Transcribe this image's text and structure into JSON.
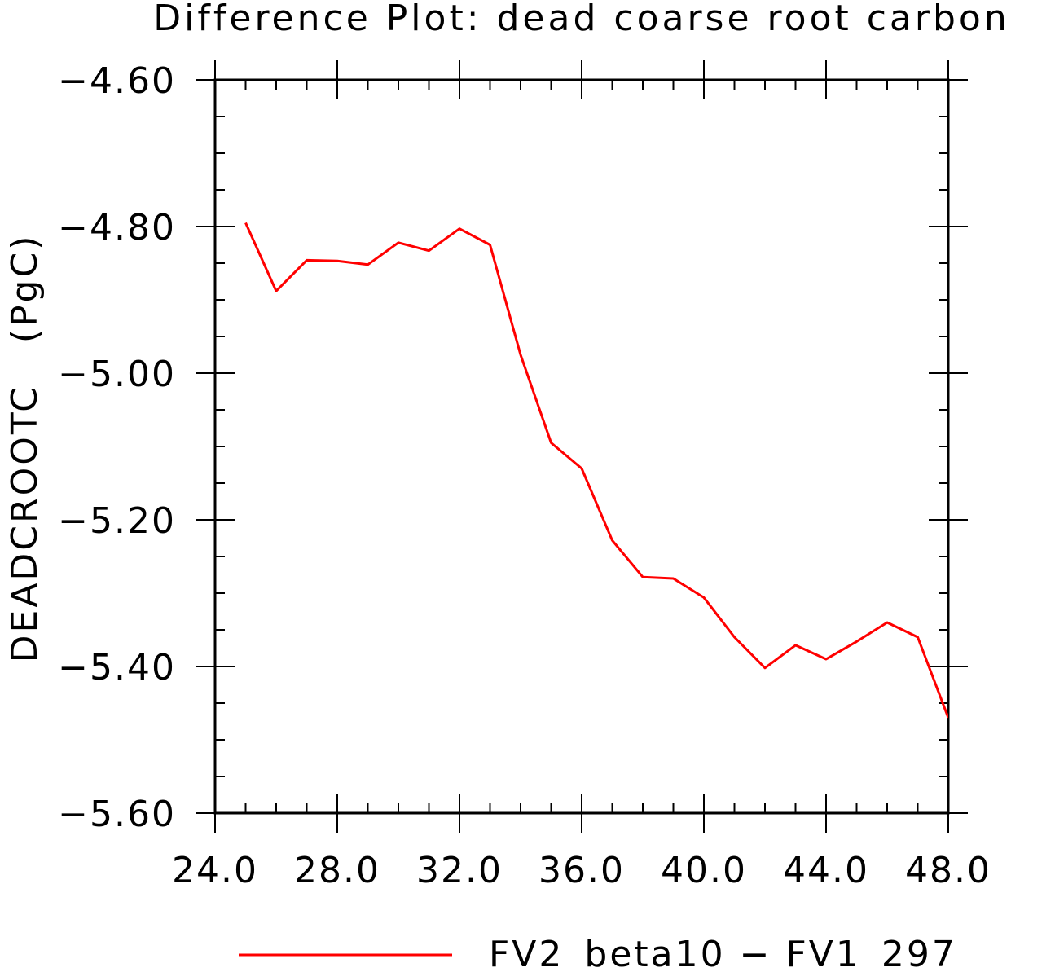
{
  "chart_data": {
    "type": "line",
    "title": "Difference Plot: dead coarse root carbon",
    "xlabel": "",
    "ylabel": "DEADCROOTC   (PgC)",
    "xlim": [
      24,
      48
    ],
    "ylim": [
      -5.6,
      -4.6
    ],
    "x_ticks": [
      "24.0",
      "28.0",
      "32.0",
      "36.0",
      "40.0",
      "44.0",
      "48.0"
    ],
    "x_tick_values": [
      24,
      28,
      32,
      36,
      40,
      44,
      48
    ],
    "y_ticks": [
      "-4.60",
      "-4.80",
      "-5.00",
      "-5.20",
      "-5.40",
      "-5.60"
    ],
    "y_tick_values": [
      -4.6,
      -4.8,
      -5.0,
      -5.2,
      -5.4,
      -5.6
    ],
    "x_minor_step": 1,
    "y_minor_step": 0.05,
    "grid": false,
    "legend_position": "bottom-center",
    "series": [
      {
        "name": "FV2_beta10 - FV1_297",
        "color": "#ff0000",
        "x": [
          25,
          26,
          27,
          28,
          29,
          30,
          31,
          32,
          33,
          34,
          35,
          36,
          37,
          38,
          39,
          40,
          41,
          42,
          43,
          44,
          45,
          46,
          47,
          48
        ],
        "y": [
          -4.795,
          -4.888,
          -4.846,
          -4.847,
          -4.852,
          -4.822,
          -4.833,
          -4.803,
          -4.825,
          -4.975,
          -5.095,
          -5.13,
          -5.228,
          -5.278,
          -5.28,
          -5.306,
          -5.36,
          -5.402,
          -5.371,
          -5.39,
          -5.366,
          -5.34,
          -5.36,
          -5.47
        ]
      }
    ]
  }
}
